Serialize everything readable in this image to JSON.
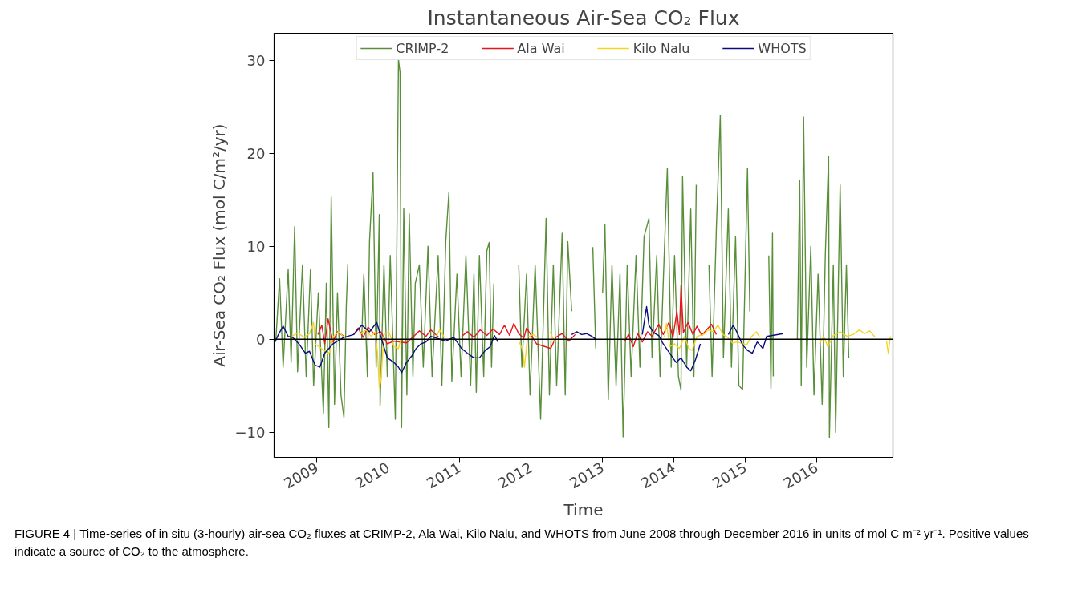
{
  "chart_data": {
    "type": "line",
    "title": "Instantaneous Air-Sea CO₂ Flux",
    "xlabel": "Time",
    "ylabel": "Air-Sea CO₂ Flux (mol C/m²/yr)",
    "xlim": [
      "2008-05-27",
      "2017-01-25"
    ],
    "ylim": [
      -12.7,
      32.9
    ],
    "xticks": [
      {
        "value": "2009-01-01",
        "label": "2009"
      },
      {
        "value": "2010-01-01",
        "label": "2010"
      },
      {
        "value": "2011-01-01",
        "label": "2011"
      },
      {
        "value": "2012-01-01",
        "label": "2012"
      },
      {
        "value": "2013-01-01",
        "label": "2013"
      },
      {
        "value": "2014-01-01",
        "label": "2014"
      },
      {
        "value": "2015-01-01",
        "label": "2015"
      },
      {
        "value": "2016-01-01",
        "label": "2016"
      }
    ],
    "yticks": [
      {
        "value": -10,
        "label": "−10"
      },
      0,
      10,
      20,
      30
    ],
    "grid": false,
    "legend": "top",
    "line_style": "solid",
    "ref_lines": [
      {
        "axis": "y",
        "value": 0,
        "color": "#000000"
      }
    ],
    "annotations": [
      "FIGURE 4 | Time-series of in situ (3-hourly) air-sea CO₂ fluxes at CRIMP-2, Ala Wai, Kilo Nalu, and WHOTS from June 2008 through December 2016 in units of mol C m⁻² yr⁻¹. Positive values indicate a source of CO₂ to the atmosphere."
    ],
    "series": [
      {
        "name": "CRIMP-2",
        "color": "#5a8f3a",
        "x": [
          "2008-06-05",
          "2008-06-24",
          "2008-07-12",
          "2008-08-07",
          "2008-08-22",
          "2008-09-09",
          "2008-09-24",
          "2008-10-19",
          "2008-11-07",
          "2008-11-29",
          "2008-12-15",
          "2009-01-08",
          "2009-02-03",
          "2009-02-18",
          "2009-03-03",
          "2009-03-15",
          "2009-04-01",
          "2009-04-16",
          "2009-05-04",
          "2009-05-19",
          "2009-05-31",
          "2009-06-08",
          "2009-06-12",
          "2009-08-18",
          "2009-08-29",
          "2009-09-16",
          "2009-09-27",
          "2009-10-15",
          "2009-10-31",
          "2009-11-16",
          "2009-11-20",
          "2009-12-10",
          "2009-12-27",
          "2010-01-11",
          "2010-02-06",
          "2010-02-22",
          "2010-03-02",
          "2010-03-10",
          "2010-03-21",
          "2010-04-06",
          "2010-04-18",
          "2010-05-07",
          "2010-05-19",
          "2010-06-09",
          "2010-06-29",
          "2010-07-23",
          "2010-08-13",
          "2010-09-13",
          "2010-10-02",
          "2010-10-22",
          "2010-11-07",
          "2010-11-22",
          "2010-12-18",
          "2011-01-08",
          "2011-02-02",
          "2011-02-26",
          "2011-03-15",
          "2011-03-27",
          "2011-04-12",
          "2011-05-04",
          "2011-05-20",
          "2011-06-01",
          "2011-06-13",
          "2011-06-25",
          "2011-08-07",
          "2011-10-30",
          "2011-11-15",
          "2011-12-09",
          "2011-12-27",
          "2012-01-22",
          "2012-02-19",
          "2012-03-18",
          "2012-04-04",
          "2012-04-24",
          "2012-05-11",
          "2012-06-08",
          "2012-06-24",
          "2012-07-07",
          "2012-07-27",
          "2012-08-01",
          "2012-11-12",
          "2012-11-27",
          "2012-12-05",
          "2013-01-01",
          "2013-01-13",
          "2013-01-30",
          "2013-02-18",
          "2013-03-11",
          "2013-03-31",
          "2013-04-16",
          "2013-05-07",
          "2013-05-27",
          "2013-06-21",
          "2013-07-11",
          "2013-08-01",
          "2013-08-26",
          "2013-09-11",
          "2013-10-05",
          "2013-10-22",
          "2013-11-07",
          "2013-11-28",
          "2013-12-18",
          "2014-01-04",
          "2014-01-24",
          "2014-02-06",
          "2014-02-14",
          "2014-03-07",
          "2014-03-28",
          "2014-04-13",
          "2014-04-25",
          "2014-05-07",
          "2014-06-29",
          "2014-07-15",
          "2014-08-06",
          "2014-08-26",
          "2014-09-11",
          "2014-10-06",
          "2014-10-22",
          "2014-11-12",
          "2014-11-29",
          "2014-12-18",
          "2015-01-12",
          "2015-01-24",
          "2015-02-10",
          "2015-05-01",
          "2015-05-12",
          "2015-05-20",
          "2015-05-24",
          "2015-06-02",
          "2015-09-24",
          "2015-10-06",
          "2015-10-14",
          "2015-10-26",
          "2015-11-11",
          "2015-12-02",
          "2015-12-18",
          "2016-01-08",
          "2016-01-29",
          "2016-02-14",
          "2016-03-02",
          "2016-03-06",
          "2016-03-26",
          "2016-04-07",
          "2016-04-30",
          "2016-05-16",
          "2016-06-01",
          "2016-06-13"
        ],
        "values": [
          0,
          6.5,
          -3,
          7.5,
          -2.5,
          12.1,
          -3.5,
          8,
          -4,
          7.5,
          -5,
          5,
          -8,
          6,
          -9.5,
          15.3,
          -7,
          5,
          -6,
          -8.4,
          3.5,
          8.1,
          null,
          0,
          7,
          -4,
          10.5,
          17.9,
          -3,
          13.4,
          -7.2,
          8,
          -4,
          9,
          -8.6,
          30.1,
          28.7,
          -9.5,
          14.1,
          -6,
          13.5,
          -4,
          6,
          8,
          -3,
          10,
          -4,
          9,
          -5,
          10.5,
          15.8,
          -4.5,
          7,
          -4,
          9,
          -5,
          7,
          -5.7,
          9,
          -4,
          9.5,
          10.4,
          -3,
          6,
          null,
          8,
          -3,
          7,
          -6,
          8,
          -8.6,
          13,
          -6,
          8,
          -5,
          11.4,
          -6,
          10.5,
          3,
          null,
          9.9,
          -1,
          null,
          5,
          12.3,
          -6.5,
          8,
          -5,
          7,
          -10.5,
          8,
          -4,
          9,
          -3,
          11,
          13,
          -2,
          9,
          -4,
          6,
          18.4,
          -3,
          9,
          -4,
          -5.5,
          17.5,
          -3,
          14,
          -4,
          16.6,
          null,
          8,
          -4,
          12,
          24.1,
          -2,
          14,
          -3,
          11,
          -5,
          -5.4,
          18.4,
          3,
          null,
          9,
          -5.3,
          11.4,
          -4,
          null,
          0,
          17.1,
          -5,
          23.9,
          -3,
          10,
          -6,
          7,
          -7,
          9,
          19.7,
          -10.6,
          8,
          -10,
          16.6,
          -4,
          8,
          -2
        ]
      },
      {
        "name": "Ala Wai",
        "color": "#e8141b",
        "x": [
          "2009-01-06",
          "2009-01-26",
          "2009-02-10",
          "2009-02-27",
          "2009-03-24",
          "2009-04-16",
          "2009-05-19",
          "2009-06-12",
          "2009-07-08",
          "2009-07-31",
          "2009-08-25",
          "2009-09-20",
          "2009-10-23",
          "2009-11-24",
          "2009-12-27",
          "2010-01-30",
          "2010-04-04",
          "2010-05-16",
          "2010-06-09",
          "2010-07-13",
          "2010-08-06",
          "2010-09-16",
          "2010-10-05",
          "2011-01-11",
          "2011-02-09",
          "2011-03-15",
          "2011-04-16",
          "2011-05-20",
          "2011-06-21",
          "2011-07-24",
          "2011-08-18",
          "2011-09-13",
          "2011-10-05",
          "2011-10-30",
          "2011-11-25",
          "2011-12-09",
          "2012-01-29",
          "2012-04-11",
          "2012-05-07",
          "2012-06-08",
          "2012-07-13",
          "2012-08-14",
          "2012-08-28",
          "2013-04-24",
          "2013-05-14",
          "2013-06-07",
          "2013-06-29",
          "2013-07-23",
          "2013-08-19",
          "2013-09-11",
          "2013-10-15",
          "2013-11-07",
          "2013-12-06",
          "2013-12-27",
          "2014-01-16",
          "2014-01-29",
          "2014-02-06",
          "2014-02-18",
          "2014-03-14",
          "2014-04-08",
          "2014-04-29",
          "2014-05-23",
          "2014-06-17",
          "2014-07-12",
          "2014-08-06"
        ],
        "values": [
          0.5,
          1.5,
          -0.5,
          2.2,
          -0.3,
          0.8,
          0.3,
          null,
          0.5,
          1.2,
          0.2,
          1.3,
          0.5,
          0.8,
          -0.5,
          -0.2,
          -0.4,
          0.4,
          0.9,
          0.3,
          1,
          0.2,
          null,
          0.3,
          0.8,
          0.2,
          1,
          0.4,
          1.1,
          0.5,
          1.5,
          0.4,
          1.7,
          0.6,
          0.1,
          1.2,
          -0.5,
          -1,
          0.2,
          0.6,
          -0.2,
          0.5,
          null,
          -0.2,
          0.5,
          -0.8,
          0.6,
          -0.3,
          0.8,
          0.3,
          1.6,
          0.5,
          1.8,
          0.2,
          3,
          0.5,
          5.8,
          0.7,
          1.8,
          0.5,
          1.4,
          0.4,
          1,
          1.6,
          0.5
        ]
      },
      {
        "name": "Kilo Nalu",
        "color": "#f5d327",
        "x": [
          "2008-08-26",
          "2008-09-24",
          "2008-10-27",
          "2008-11-24",
          "2008-12-15",
          "2008-12-23",
          "2009-02-27",
          "2009-03-06",
          "2009-03-26",
          "2009-04-23",
          "2009-05-19",
          "2009-06-20",
          "2009-08-10",
          "2009-09-09",
          "2009-10-05",
          "2009-10-27",
          "2009-11-07",
          "2009-11-16",
          "2009-11-24",
          "2009-12-10",
          "2010-01-04",
          "2010-01-30",
          "2010-02-22",
          "2010-03-10",
          "2010-04-04",
          "2010-09-03",
          "2010-09-20",
          "2010-10-15",
          "2010-10-27",
          "2011-11-02",
          "2011-11-20",
          "2011-11-28",
          "2011-12-14",
          "2012-01-12",
          "2012-02-03",
          "2012-02-15",
          "2012-04-08",
          "2012-04-30",
          "2012-05-12",
          "2013-11-13",
          "2013-11-24",
          "2013-12-10",
          "2014-01-04",
          "2014-01-29",
          "2014-02-24",
          "2014-03-18",
          "2014-04-04",
          "2014-04-29",
          "2014-06-01",
          "2014-06-25",
          "2014-07-20",
          "2014-08-14",
          "2014-09-09",
          "2014-10-02",
          "2014-10-27",
          "2014-11-21",
          "2015-01-08",
          "2015-02-02",
          "2015-02-27",
          "2015-03-15",
          "2015-03-25",
          "2016-01-15",
          "2016-02-06",
          "2016-02-27",
          "2016-03-26",
          "2016-04-30",
          "2016-06-05",
          "2016-07-05",
          "2016-08-06",
          "2016-09-03",
          "2016-09-27",
          "2016-10-27",
          "2016-11-05",
          "2016-12-23",
          "2017-01-01",
          "2017-01-12"
        ],
        "values": [
          0.3,
          0.7,
          0.2,
          0.6,
          1.8,
          -0.5,
          -1.5,
          -1.4,
          0.3,
          0.8,
          0.2,
          null,
          0.5,
          1,
          0.3,
          0.8,
          -1.5,
          -5.2,
          -4.5,
          0.5,
          0.8,
          -0.8,
          -1,
          0.3,
          null,
          0.3,
          1,
          0.2,
          null,
          -0.3,
          -1.2,
          -3,
          0.2,
          0.5,
          0.2,
          null,
          0.8,
          -0.3,
          null,
          0.2,
          1.7,
          -0.8,
          -0.5,
          -1,
          0.3,
          -1,
          -1.2,
          0.3,
          0.5,
          1,
          0.8,
          1.5,
          0.5,
          0.2,
          -0.4,
          -0.3,
          -0.6,
          0.3,
          0.8,
          0.2,
          null,
          -0.5,
          0.3,
          -0.8,
          0.4,
          0.8,
          0.3,
          0.5,
          1,
          0.6,
          0.9,
          0.2,
          null,
          -0.2,
          -1.5,
          0.3
        ]
      },
      {
        "name": "WHOTS",
        "color": "#0b0b80",
        "x": [
          "2008-05-27",
          "2008-06-18",
          "2008-07-12",
          "2008-08-07",
          "2008-08-29",
          "2008-10-01",
          "2008-11-03",
          "2008-11-24",
          "2008-12-23",
          "2009-01-16",
          "2009-02-10",
          "2009-03-24",
          "2009-05-19",
          "2009-07-08",
          "2009-08-18",
          "2009-09-27",
          "2009-11-03",
          "2009-12-02",
          "2009-12-27",
          "2010-01-30",
          "2010-02-22",
          "2010-03-10",
          "2010-04-04",
          "2010-05-01",
          "2010-05-23",
          "2010-06-17",
          "2010-07-13",
          "2010-08-06",
          "2010-10-22",
          "2010-12-02",
          "2011-01-11",
          "2011-02-09",
          "2011-03-15",
          "2011-04-12",
          "2011-05-12",
          "2011-06-06",
          "2011-06-28",
          "2011-07-16",
          "2011-07-28",
          "2012-07-27",
          "2012-08-22",
          "2012-09-16",
          "2012-10-11",
          "2012-11-07",
          "2012-11-27",
          "2012-12-05",
          "2013-07-23",
          "2013-08-14",
          "2013-08-26",
          "2013-09-19",
          "2013-10-15",
          "2013-11-07",
          "2013-12-10",
          "2014-01-12",
          "2014-02-06",
          "2014-03-07",
          "2014-03-28",
          "2014-04-21",
          "2014-05-16",
          "2014-05-25",
          "2014-10-06",
          "2014-10-31",
          "2014-11-18",
          "2014-12-18",
          "2015-01-12",
          "2015-02-06",
          "2015-03-03",
          "2015-04-01",
          "2015-04-20",
          "2015-07-13"
        ],
        "values": [
          -0.5,
          0.5,
          1.4,
          0.3,
          0.2,
          -0.5,
          -1.5,
          -1.3,
          -2.8,
          -3,
          -1.5,
          -0.5,
          0.2,
          0.5,
          1.5,
          0.8,
          1.8,
          -0.3,
          -2,
          -2.5,
          -3,
          -3.6,
          -2.5,
          -1.8,
          -1,
          -0.5,
          -0.3,
          0.3,
          -0.2,
          0.2,
          -1,
          -1.5,
          -2,
          -2,
          -1.2,
          -0.8,
          0.4,
          -0.3,
          null,
          0.5,
          0.8,
          0.5,
          0.6,
          0.3,
          0,
          null,
          0.5,
          3.5,
          1.5,
          0.7,
          0.4,
          -0.5,
          -1.5,
          -2.5,
          -2,
          -3,
          -3.4,
          -2.2,
          -0.5,
          null,
          0.5,
          1.5,
          0.8,
          -0.6,
          -1.2,
          -1.5,
          -0.3,
          -1,
          0.3,
          0.6
        ]
      }
    ]
  }
}
